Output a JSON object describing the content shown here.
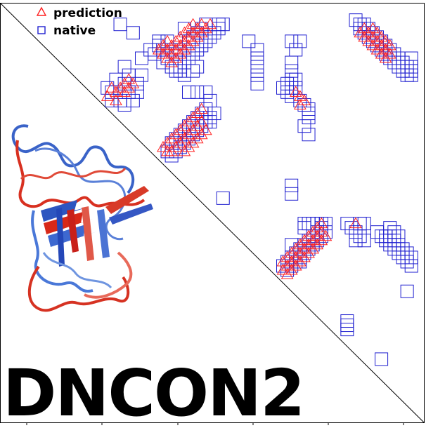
{
  "chart_data": {
    "type": "scatter",
    "title": "DNCON2",
    "xlim": [
      1,
      100
    ],
    "ylim": [
      1,
      100
    ],
    "diagonal": true,
    "legend_position": "top-left",
    "colors": {
      "prediction": "#ff2020",
      "native": "#2020d0",
      "axis": "#000000"
    },
    "series": [
      {
        "name": "prediction",
        "marker": "triangle",
        "points": [
          [
            27,
            21
          ],
          [
            28,
            22
          ],
          [
            29,
            21
          ],
          [
            30,
            20
          ],
          [
            31,
            19
          ],
          [
            30,
            22
          ],
          [
            31,
            21
          ],
          [
            32,
            20
          ],
          [
            26,
            23
          ],
          [
            28,
            24
          ],
          [
            39,
            11
          ],
          [
            40,
            10
          ],
          [
            41,
            11
          ],
          [
            42,
            10
          ],
          [
            43,
            9
          ],
          [
            44,
            8
          ],
          [
            45,
            7
          ],
          [
            46,
            6
          ],
          [
            40,
            12
          ],
          [
            41,
            13
          ],
          [
            42,
            12
          ],
          [
            43,
            11
          ],
          [
            44,
            10
          ],
          [
            45,
            9
          ],
          [
            46,
            8
          ],
          [
            47,
            7
          ],
          [
            48,
            6
          ],
          [
            42,
            14
          ],
          [
            43,
            13
          ],
          [
            44,
            12
          ],
          [
            45,
            11
          ],
          [
            46,
            10
          ],
          [
            47,
            9
          ],
          [
            48,
            8
          ],
          [
            49,
            7
          ],
          [
            50,
            6
          ],
          [
            39,
            13
          ],
          [
            40,
            14
          ],
          [
            41,
            15
          ],
          [
            38,
            12
          ],
          [
            40,
            34
          ],
          [
            41,
            33
          ],
          [
            42,
            32
          ],
          [
            43,
            31
          ],
          [
            44,
            30
          ],
          [
            45,
            29
          ],
          [
            46,
            28
          ],
          [
            47,
            27
          ],
          [
            48,
            26
          ],
          [
            42,
            35
          ],
          [
            43,
            34
          ],
          [
            44,
            33
          ],
          [
            45,
            32
          ],
          [
            46,
            31
          ],
          [
            47,
            30
          ],
          [
            48,
            29
          ],
          [
            41,
            36
          ],
          [
            40,
            36
          ],
          [
            39,
            35
          ],
          [
            44,
            36
          ],
          [
            45,
            35
          ],
          [
            46,
            34
          ],
          [
            47,
            33
          ],
          [
            48,
            32
          ],
          [
            49,
            31
          ],
          [
            86,
            7
          ],
          [
            87,
            8
          ],
          [
            88,
            9
          ],
          [
            89,
            10
          ],
          [
            90,
            11
          ],
          [
            91,
            12
          ],
          [
            92,
            13
          ],
          [
            86,
            9
          ],
          [
            87,
            10
          ],
          [
            88,
            11
          ],
          [
            89,
            12
          ],
          [
            90,
            13
          ],
          [
            91,
            14
          ],
          [
            85,
            8
          ],
          [
            88,
            7
          ],
          [
            89,
            8
          ],
          [
            90,
            9
          ],
          [
            91,
            10
          ],
          [
            92,
            11
          ],
          [
            70,
            22
          ],
          [
            71,
            23
          ],
          [
            72,
            24
          ],
          [
            71,
            25
          ],
          [
            67,
            62
          ],
          [
            68,
            61
          ],
          [
            69,
            60
          ],
          [
            70,
            59
          ],
          [
            71,
            58
          ],
          [
            72,
            57
          ],
          [
            73,
            56
          ],
          [
            74,
            55
          ],
          [
            75,
            54
          ],
          [
            76,
            53
          ],
          [
            68,
            63
          ],
          [
            69,
            62
          ],
          [
            70,
            61
          ],
          [
            71,
            60
          ],
          [
            72,
            59
          ],
          [
            73,
            58
          ],
          [
            74,
            57
          ],
          [
            75,
            56
          ],
          [
            76,
            55
          ],
          [
            69,
            64
          ],
          [
            70,
            63
          ],
          [
            71,
            62
          ],
          [
            72,
            61
          ],
          [
            73,
            60
          ],
          [
            67,
            64
          ],
          [
            68,
            65
          ],
          [
            74,
            59
          ],
          [
            75,
            58
          ],
          [
            76,
            57
          ],
          [
            77,
            56
          ],
          [
            84,
            53
          ]
        ]
      },
      {
        "name": "native",
        "marker": "square",
        "points": [
          [
            29,
            6
          ],
          [
            32,
            8
          ],
          [
            36,
            12
          ],
          [
            38,
            10
          ],
          [
            37,
            13
          ],
          [
            39,
            15
          ],
          [
            34,
            14
          ],
          [
            30,
            16
          ],
          [
            31,
            18
          ],
          [
            30,
            20
          ],
          [
            31,
            22
          ],
          [
            32,
            24
          ],
          [
            33,
            22
          ],
          [
            33,
            20
          ],
          [
            34,
            18
          ],
          [
            28,
            19
          ],
          [
            27,
            22
          ],
          [
            27,
            24
          ],
          [
            29,
            24
          ],
          [
            30,
            25
          ],
          [
            26,
            21
          ],
          [
            40,
            14
          ],
          [
            41,
            16
          ],
          [
            42,
            17
          ],
          [
            43,
            16
          ],
          [
            44,
            15
          ],
          [
            45,
            14
          ],
          [
            46,
            13
          ],
          [
            47,
            12
          ],
          [
            48,
            11
          ],
          [
            49,
            10
          ],
          [
            50,
            9
          ],
          [
            51,
            8
          ],
          [
            52,
            7
          ],
          [
            53,
            6
          ],
          [
            44,
            7
          ],
          [
            41,
            12
          ],
          [
            42,
            13
          ],
          [
            43,
            12
          ],
          [
            45,
            10
          ],
          [
            46,
            9
          ],
          [
            47,
            8
          ],
          [
            48,
            7
          ],
          [
            49,
            6
          ],
          [
            39,
            12
          ],
          [
            38,
            11
          ],
          [
            40,
            10
          ],
          [
            43,
            17
          ],
          [
            44,
            18
          ],
          [
            46,
            17
          ],
          [
            47,
            16
          ],
          [
            45,
            22
          ],
          [
            47,
            22
          ],
          [
            49,
            22
          ],
          [
            50,
            24
          ],
          [
            50,
            29
          ],
          [
            52,
            6
          ],
          [
            40,
            36
          ],
          [
            41,
            37
          ],
          [
            42,
            36
          ],
          [
            43,
            35
          ],
          [
            44,
            34
          ],
          [
            45,
            33
          ],
          [
            46,
            32
          ],
          [
            47,
            31
          ],
          [
            48,
            30
          ],
          [
            49,
            29
          ],
          [
            50,
            28
          ],
          [
            51,
            27
          ],
          [
            41,
            34
          ],
          [
            42,
            33
          ],
          [
            43,
            32
          ],
          [
            44,
            31
          ],
          [
            45,
            30
          ],
          [
            46,
            29
          ],
          [
            47,
            28
          ],
          [
            48,
            27
          ],
          [
            49,
            26
          ],
          [
            53,
            47
          ],
          [
            59,
            10
          ],
          [
            61,
            12
          ],
          [
            61,
            14
          ],
          [
            61,
            16
          ],
          [
            61,
            18
          ],
          [
            61,
            20
          ],
          [
            61,
            14
          ],
          [
            69,
            15
          ],
          [
            69,
            17
          ],
          [
            69,
            19
          ],
          [
            69,
            21
          ],
          [
            68,
            22
          ],
          [
            69,
            23
          ],
          [
            70,
            21
          ],
          [
            71,
            24
          ],
          [
            72,
            25
          ],
          [
            73,
            26
          ],
          [
            73,
            27
          ],
          [
            73,
            28
          ],
          [
            70,
            19
          ],
          [
            68,
            20
          ],
          [
            67,
            21
          ],
          [
            72,
            30
          ],
          [
            73,
            32
          ],
          [
            69,
            10
          ],
          [
            70,
            12
          ],
          [
            69,
            44
          ],
          [
            69,
            46
          ],
          [
            71,
            10
          ],
          [
            86,
            6
          ],
          [
            87,
            7
          ],
          [
            88,
            8
          ],
          [
            89,
            9
          ],
          [
            90,
            10
          ],
          [
            91,
            11
          ],
          [
            92,
            12
          ],
          [
            93,
            13
          ],
          [
            94,
            14
          ],
          [
            95,
            15
          ],
          [
            96,
            16
          ],
          [
            97,
            17
          ],
          [
            85,
            7
          ],
          [
            86,
            8
          ],
          [
            87,
            9
          ],
          [
            88,
            10
          ],
          [
            89,
            11
          ],
          [
            90,
            12
          ],
          [
            91,
            13
          ],
          [
            92,
            14
          ],
          [
            93,
            15
          ],
          [
            94,
            16
          ],
          [
            95,
            17
          ],
          [
            96,
            18
          ],
          [
            84,
            5
          ],
          [
            85,
            6
          ],
          [
            97,
            14
          ],
          [
            97,
            16
          ],
          [
            97,
            18
          ],
          [
            67,
            63
          ],
          [
            68,
            62
          ],
          [
            69,
            61
          ],
          [
            70,
            60
          ],
          [
            71,
            59
          ],
          [
            72,
            58
          ],
          [
            73,
            57
          ],
          [
            74,
            56
          ],
          [
            75,
            55
          ],
          [
            76,
            54
          ],
          [
            68,
            64
          ],
          [
            69,
            63
          ],
          [
            70,
            62
          ],
          [
            71,
            61
          ],
          [
            72,
            60
          ],
          [
            73,
            59
          ],
          [
            74,
            58
          ],
          [
            75,
            57
          ],
          [
            76,
            56
          ],
          [
            77,
            55
          ],
          [
            72,
            54
          ],
          [
            73,
            53
          ],
          [
            74,
            53
          ],
          [
            75,
            53
          ],
          [
            76,
            53
          ],
          [
            77,
            53
          ],
          [
            71,
            62
          ],
          [
            72,
            53
          ],
          [
            69,
            58
          ],
          [
            82,
            53
          ],
          [
            83,
            54
          ],
          [
            84,
            55
          ],
          [
            84,
            57
          ],
          [
            85,
            56
          ],
          [
            86,
            57
          ],
          [
            85,
            53
          ],
          [
            86,
            53
          ],
          [
            89,
            55
          ],
          [
            90,
            56
          ],
          [
            91,
            57
          ],
          [
            92,
            58
          ],
          [
            93,
            59
          ],
          [
            94,
            60
          ],
          [
            95,
            61
          ],
          [
            96,
            62
          ],
          [
            97,
            63
          ],
          [
            92,
            54
          ],
          [
            93,
            55
          ],
          [
            93,
            57
          ],
          [
            94,
            58
          ],
          [
            95,
            59
          ],
          [
            96,
            60
          ],
          [
            97,
            61
          ],
          [
            92,
            56
          ],
          [
            91,
            56
          ],
          [
            94,
            56
          ],
          [
            96,
            69
          ],
          [
            82,
            76
          ],
          [
            82,
            77
          ],
          [
            82,
            78
          ],
          [
            90,
            85
          ]
        ]
      }
    ]
  }
}
